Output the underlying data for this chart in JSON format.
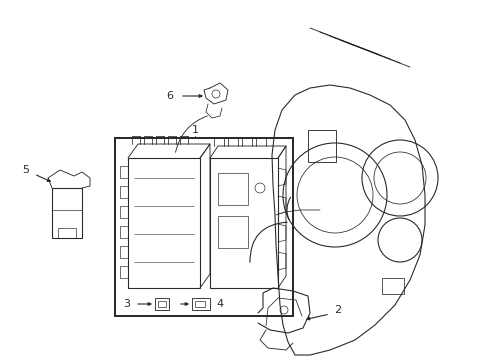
{
  "bg_color": "#ffffff",
  "line_color": "#2a2a2a",
  "lw": 0.8,
  "fig_w": 4.89,
  "fig_h": 3.6,
  "dpi": 100
}
